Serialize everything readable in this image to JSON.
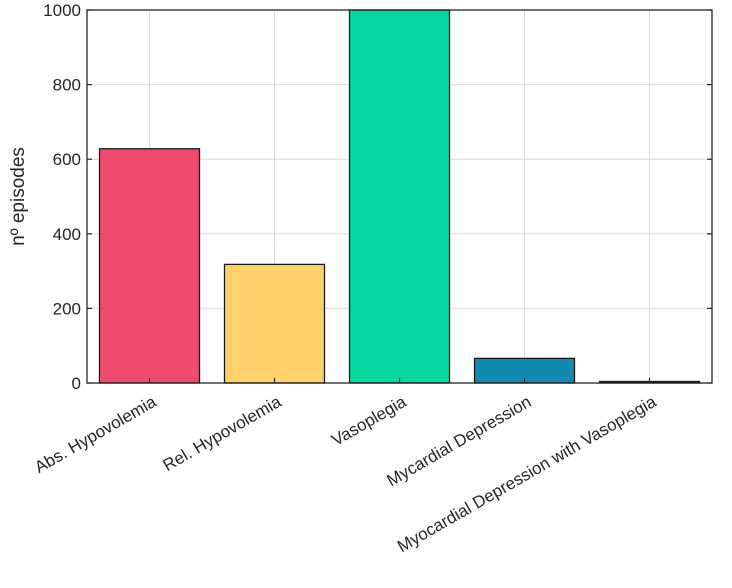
{
  "chart_data": {
    "type": "bar",
    "title": "",
    "xlabel": "",
    "ylabel": "nº episodes",
    "ylim": [
      0,
      1000
    ],
    "yticks": [
      0,
      200,
      400,
      600,
      800,
      1000
    ],
    "grid": true,
    "categories": [
      "Abs. Hypovolemia",
      "Rel. Hypovolemia",
      "Vasoplegia",
      "Mycardial Depression",
      "Myocardial Depression with Vasoplegia"
    ],
    "values": [
      628,
      318,
      1000,
      66,
      4
    ],
    "colors": [
      "#ef4a6f",
      "#fed16b",
      "#07d7a0",
      "#138ab2",
      "#0d3b4c"
    ]
  }
}
